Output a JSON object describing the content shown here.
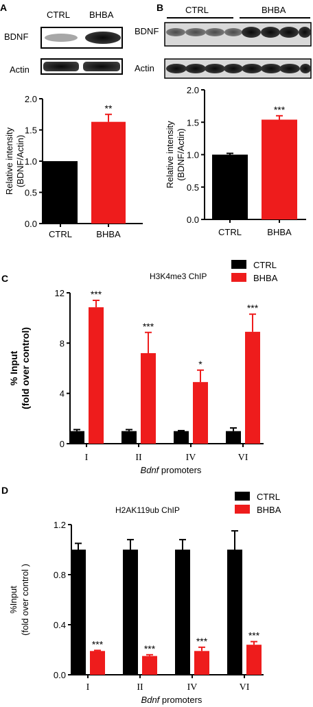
{
  "colors": {
    "ctrl": "#000000",
    "bhba": "#ee1c1c",
    "axis": "#000000"
  },
  "panels": {
    "A": {
      "letter": "A",
      "blot": {
        "lanes": [
          "CTRL",
          "BHBA"
        ],
        "rows": [
          "BDNF",
          "Actin"
        ]
      }
    },
    "B": {
      "letter": "B",
      "blot": {
        "lanes": [
          "CTRL",
          "BHBA"
        ],
        "rows": [
          "BDNF",
          "Actin"
        ]
      }
    },
    "C": {
      "letter": "C"
    },
    "D": {
      "letter": "D"
    }
  },
  "chart_data": [
    {
      "id": "A",
      "type": "bar",
      "categories": [
        "CTRL",
        "BHBA"
      ],
      "values": [
        1.0,
        1.63
      ],
      "errors": [
        0,
        0.12
      ],
      "significance": [
        "",
        "**"
      ],
      "ylabel": "Relative intensity",
      "ylabel2": "(BDNF/Actin)",
      "ylim": [
        0,
        2.0
      ],
      "yticks": [
        "0.0",
        "0.5",
        "1.0",
        "1.5",
        "2.0"
      ],
      "ytick_values": [
        0,
        0.5,
        1.0,
        1.5,
        2.0
      ]
    },
    {
      "id": "B",
      "type": "bar",
      "categories": [
        "CTRL",
        "BHBA"
      ],
      "values": [
        1.0,
        1.54
      ],
      "errors": [
        0.02,
        0.06
      ],
      "significance": [
        "",
        "***"
      ],
      "ylabel": "Relative intensity",
      "ylabel2": "(BDNF/Actin)",
      "ylim": [
        0,
        2.0
      ],
      "yticks": [
        "0.0",
        "0.5",
        "1.0",
        "1.5",
        "2.0"
      ],
      "ytick_values": [
        0,
        0.5,
        1.0,
        1.5,
        2.0
      ]
    },
    {
      "id": "C",
      "type": "bar",
      "title": "H3K4me3 ChIP",
      "categories": [
        "I",
        "II",
        "IV",
        "VI"
      ],
      "series": [
        {
          "name": "CTRL",
          "values": [
            1.0,
            1.0,
            1.0,
            1.0
          ],
          "errors": [
            0.12,
            0.12,
            0.04,
            0.25
          ],
          "significance": [
            "",
            "",
            "",
            ""
          ]
        },
        {
          "name": "BHBA",
          "values": [
            10.85,
            7.2,
            4.9,
            8.9
          ],
          "errors": [
            0.55,
            1.65,
            0.95,
            1.4
          ],
          "significance": [
            "***",
            "***",
            "*",
            "***"
          ]
        }
      ],
      "ylabel": "% Input",
      "ylabel2": "(fold over control)",
      "xlabel_italic": "Bdnf",
      "xlabel_rest": " promoters",
      "ylim": [
        0,
        12
      ],
      "yticks": [
        "0",
        "4",
        "8",
        "12"
      ],
      "ytick_values": [
        0,
        4,
        8,
        12
      ],
      "legend": "top-right"
    },
    {
      "id": "D",
      "type": "bar",
      "title": "H2AK119ub ChIP",
      "categories": [
        "I",
        "II",
        "IV",
        "VI"
      ],
      "series": [
        {
          "name": "CTRL",
          "values": [
            1.0,
            1.0,
            1.0,
            1.0
          ],
          "errors": [
            0.05,
            0.08,
            0.08,
            0.15
          ],
          "significance": [
            "",
            "",
            "",
            ""
          ]
        },
        {
          "name": "BHBA",
          "values": [
            0.19,
            0.15,
            0.19,
            0.24
          ],
          "errors": [
            0.005,
            0.01,
            0.03,
            0.025
          ],
          "significance": [
            "***",
            "***",
            "***",
            "***"
          ]
        }
      ],
      "ylabel": "%Input",
      "ylabel2": "(fold over control )",
      "xlabel_italic": "Bdnf",
      "xlabel_rest": " promoters",
      "ylim": [
        0,
        1.2
      ],
      "yticks": [
        "0.0",
        "0.4",
        "0.8",
        "1.2"
      ],
      "ytick_values": [
        0,
        0.4,
        0.8,
        1.2
      ],
      "legend": "top-right"
    }
  ]
}
